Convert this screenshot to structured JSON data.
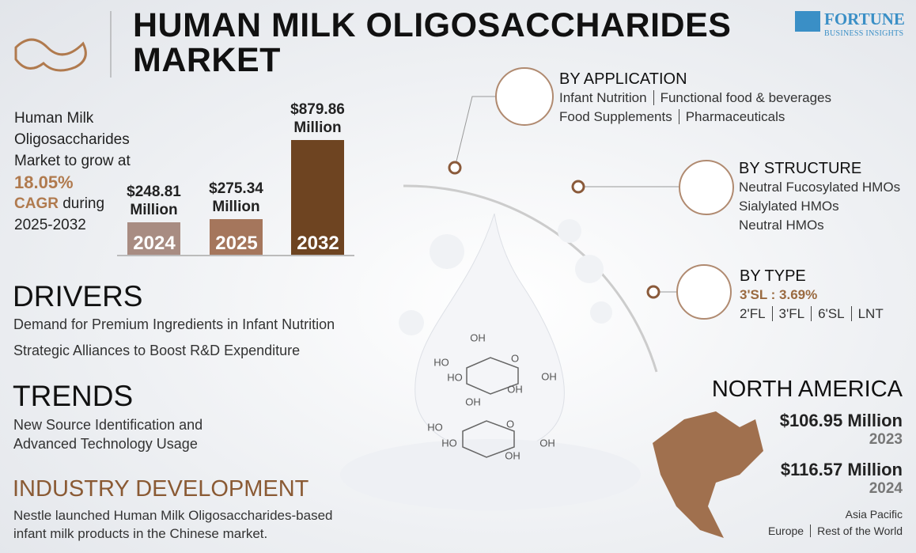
{
  "header": {
    "title": "HUMAN MILK OLIGOSACCHARIDES MARKET",
    "logo": {
      "name": "FORTUNE",
      "tagline": "BUSINESS INSIGHTS"
    }
  },
  "growth": {
    "text": "Human Milk Oligosaccharides Market to grow at",
    "cagr_value": "18.05%",
    "cagr_label": "CAGR",
    "text_after": "during",
    "period": "2025-2032"
  },
  "chart_data": {
    "type": "bar",
    "categories": [
      "2024",
      "2025",
      "2032"
    ],
    "values": [
      248.81,
      275.34,
      879.86
    ],
    "value_labels": [
      "$248.81 Million",
      "$275.34 Million",
      "$879.86 Million"
    ],
    "colors": [
      "#a88c82",
      "#a5765c",
      "#6e4421"
    ]
  },
  "drivers": {
    "title": "DRIVERS",
    "items": [
      "Demand for Premium Ingredients in Infant Nutrition",
      "Strategic Alliances to Boost R&D Expenditure"
    ]
  },
  "trends": {
    "title": "TRENDS",
    "items": [
      "New Source Identification and Advanced Technology Usage"
    ]
  },
  "industry_development": {
    "title": "INDUSTRY DEVELOPMENT",
    "text": "Nestle launched Human Milk Oligosaccharides-based infant milk products in the Chinese market."
  },
  "segments": [
    {
      "title": "BY APPLICATION",
      "lines": [
        [
          "Infant Nutrition",
          "Functional food & beverages"
        ],
        [
          "Food Supplements",
          "Pharmaceuticals"
        ]
      ]
    },
    {
      "title": "BY STRUCTURE",
      "lines": [
        [
          "Neutral Fucosylated HMOs"
        ],
        [
          "Sialylated HMOs"
        ],
        [
          "Neutral HMOs"
        ]
      ]
    },
    {
      "title": "BY TYPE",
      "highlight": "3'SL : 3.69%",
      "lines": [
        [
          "2'FL",
          "3'FL",
          "6'SL",
          "LNT"
        ]
      ]
    }
  ],
  "molecules": [
    {
      "labels": [
        "OH",
        "HO",
        "HO",
        "O",
        "OH",
        "OH"
      ]
    },
    {
      "labels": [
        "OH",
        "HO",
        "HO",
        "O",
        "OH",
        "OH"
      ]
    }
  ],
  "region": {
    "title": "NORTH AMERICA",
    "figures": [
      {
        "amount": "$106.95 Million",
        "year": "2023"
      },
      {
        "amount": "$116.57 Million",
        "year": "2024"
      }
    ],
    "other_regions": [
      [
        "Asia Pacific"
      ],
      [
        "Europe",
        "Rest of the World"
      ]
    ]
  }
}
